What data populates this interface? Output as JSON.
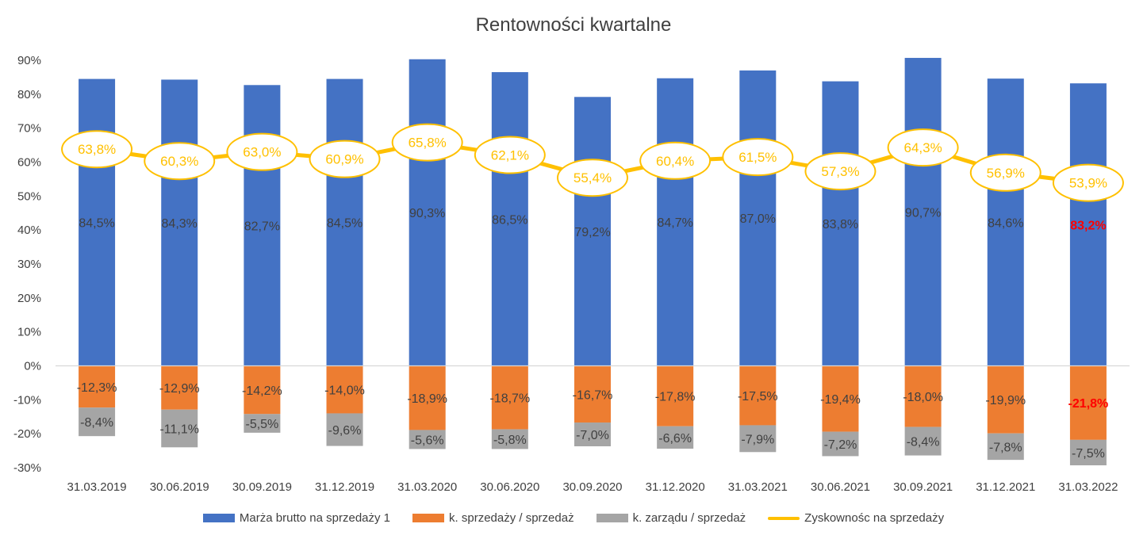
{
  "chart_data": {
    "type": "bar",
    "title": "Rentowności kwartalne",
    "xlabel": "",
    "ylabel": "",
    "ylim": [
      -30,
      90
    ],
    "y_ticks": [
      "90%",
      "80%",
      "70%",
      "60%",
      "50%",
      "40%",
      "30%",
      "20%",
      "10%",
      "0%",
      "-10%",
      "-20%",
      "-30%"
    ],
    "y_tick_values": [
      90,
      80,
      70,
      60,
      50,
      40,
      30,
      20,
      10,
      0,
      -10,
      -20,
      -30
    ],
    "categories": [
      "31.03.2019",
      "30.06.2019",
      "30.09.2019",
      "31.12.2019",
      "31.03.2020",
      "30.06.2020",
      "30.09.2020",
      "31.12.2020",
      "31.03.2021",
      "30.06.2021",
      "30.09.2021",
      "31.12.2021",
      "31.03.2022"
    ],
    "series": [
      {
        "name": "Marża brutto na sprzedaży 1",
        "kind": "bar",
        "color": "#4472C4",
        "values": [
          84.5,
          84.3,
          82.7,
          84.5,
          90.3,
          86.5,
          79.2,
          84.7,
          87.0,
          83.8,
          90.7,
          84.6,
          83.2
        ],
        "labels": [
          "84,5%",
          "84,3%",
          "82,7%",
          "84,5%",
          "90,3%",
          "86,5%",
          "79,2%",
          "84,7%",
          "87,0%",
          "83,8%",
          "90,7%",
          "84,6%",
          "83,2%"
        ]
      },
      {
        "name": "k. sprzedaży / sprzedaż",
        "kind": "bar",
        "color": "#ED7D31",
        "values": [
          -12.3,
          -12.9,
          -14.2,
          -14.0,
          -18.9,
          -18.7,
          -16.7,
          -17.8,
          -17.5,
          -19.4,
          -18.0,
          -19.9,
          -21.8
        ],
        "labels": [
          "-12,3%",
          "-12,9%",
          "-14,2%",
          "-14,0%",
          "-18,9%",
          "-18,7%",
          "-16,7%",
          "-17,8%",
          "-17,5%",
          "-19,4%",
          "-18,0%",
          "-19,9%",
          "-21,8%"
        ]
      },
      {
        "name": "k. zarządu / sprzedaż",
        "kind": "bar",
        "color": "#A5A5A5",
        "values": [
          -8.4,
          -11.1,
          -5.5,
          -9.6,
          -5.6,
          -5.8,
          -7.0,
          -6.6,
          -7.9,
          -7.2,
          -8.4,
          -7.8,
          -7.5
        ],
        "labels": [
          "-8,4%",
          "-11,1%",
          "-5,5%",
          "-9,6%",
          "-5,6%",
          "-5,8%",
          "-7,0%",
          "-6,6%",
          "-7,9%",
          "-7,2%",
          "-8,4%",
          "-7,8%",
          "-7,5%"
        ]
      },
      {
        "name": "Zyskownośc na sprzedaży",
        "kind": "line",
        "color": "#FFC000",
        "values": [
          63.8,
          60.3,
          63.0,
          60.9,
          65.8,
          62.1,
          55.4,
          60.4,
          61.5,
          57.3,
          64.3,
          56.9,
          53.9
        ],
        "labels": [
          "63,8%",
          "60,3%",
          "63,0%",
          "60,9%",
          "65,8%",
          "62,1%",
          "55,4%",
          "60,4%",
          "61,5%",
          "57,3%",
          "64,3%",
          "56,9%",
          "53,9%"
        ]
      }
    ],
    "highlight_color": "#FF0000",
    "highlight_index": 12,
    "grid": false,
    "legend_position": "bottom"
  }
}
